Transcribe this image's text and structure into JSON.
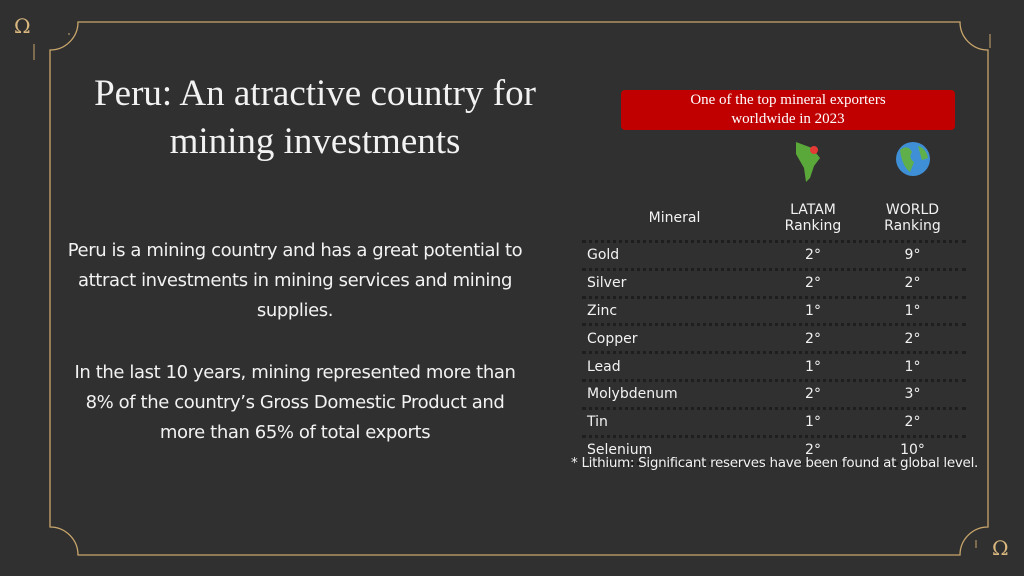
{
  "ornament": "Ω",
  "title": "Peru: An atractive country for mining investments",
  "paragraphs": [
    "Peru is a mining country and has a great potential to attract investments in mining services and mining supplies.",
    "In the last 10 years, mining represented more than 8% of the country’s Gross Domestic Product and more than 65% of total exports"
  ],
  "badge": "One of the top mineral exporters worldwide in 2023",
  "table": {
    "header": [
      "Mineral",
      "LATAM Ranking",
      "WORLD Ranking"
    ],
    "rows": [
      [
        "Gold",
        "2°",
        "9°"
      ],
      [
        "Silver",
        "2°",
        "2°"
      ],
      [
        "Zinc",
        "1°",
        "1°"
      ],
      [
        "Copper",
        "2°",
        "2°"
      ],
      [
        "Lead",
        "1°",
        "1°"
      ],
      [
        "Molybdenum",
        "2°",
        "3°"
      ],
      [
        "Tin",
        "1°",
        "2°"
      ],
      [
        "Selenium",
        "2°",
        "10°"
      ]
    ]
  },
  "footnote": "* Lithium: Significant reserves have been found at global level."
}
